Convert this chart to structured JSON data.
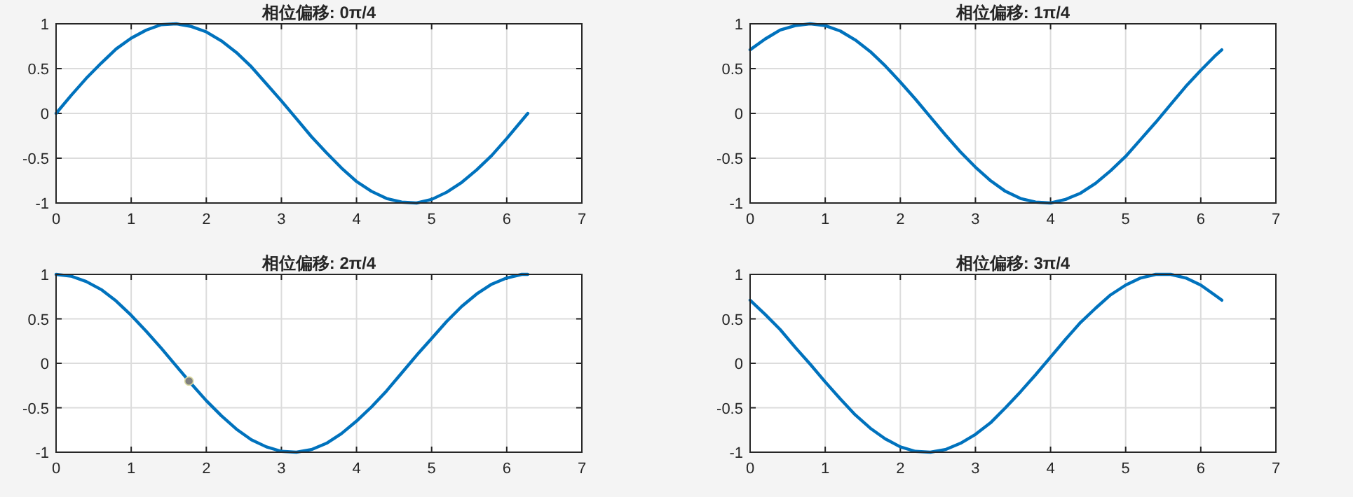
{
  "chart_data": [
    {
      "type": "line",
      "title": "相位偏移: 0π/4",
      "x": [
        0,
        0.2,
        0.4,
        0.6,
        0.8,
        1.0,
        1.2,
        1.4,
        1.6,
        1.8,
        2.0,
        2.2,
        2.4,
        2.6,
        2.8,
        3.0,
        3.2,
        3.4,
        3.6,
        3.8,
        4.0,
        4.2,
        4.4,
        4.6,
        4.8,
        5.0,
        5.2,
        5.4,
        5.6,
        5.8,
        6.0,
        6.2,
        6.28
      ],
      "series": [
        {
          "color": "#0072bd",
          "values": [
            0,
            0.2,
            0.39,
            0.56,
            0.72,
            0.84,
            0.93,
            0.99,
            1.0,
            0.97,
            0.91,
            0.81,
            0.68,
            0.52,
            0.33,
            0.14,
            -0.06,
            -0.26,
            -0.44,
            -0.61,
            -0.76,
            -0.87,
            -0.95,
            -0.99,
            -1.0,
            -0.96,
            -0.88,
            -0.77,
            -0.63,
            -0.47,
            -0.28,
            -0.08,
            0
          ]
        }
      ],
      "xlim": [
        0,
        7
      ],
      "ylim": [
        -1,
        1
      ],
      "xticks": [
        0,
        1,
        2,
        3,
        4,
        5,
        6,
        7
      ],
      "yticks": [
        -1,
        -0.5,
        0,
        0.5,
        1
      ],
      "grid": true
    },
    {
      "type": "line",
      "title": "相位偏移: 1π/4",
      "x": [
        0,
        0.2,
        0.4,
        0.6,
        0.8,
        1.0,
        1.2,
        1.4,
        1.6,
        1.8,
        2.0,
        2.2,
        2.4,
        2.6,
        2.8,
        3.0,
        3.2,
        3.4,
        3.6,
        3.8,
        4.0,
        4.2,
        4.4,
        4.6,
        4.8,
        5.0,
        5.2,
        5.4,
        5.6,
        5.8,
        6.0,
        6.2,
        6.28
      ],
      "series": [
        {
          "color": "#0072bd",
          "values": [
            0.71,
            0.83,
            0.93,
            0.98,
            1.0,
            0.98,
            0.92,
            0.82,
            0.69,
            0.53,
            0.35,
            0.16,
            -0.04,
            -0.24,
            -0.43,
            -0.6,
            -0.75,
            -0.87,
            -0.95,
            -0.99,
            -1.0,
            -0.96,
            -0.89,
            -0.78,
            -0.64,
            -0.48,
            -0.29,
            -0.1,
            0.1,
            0.3,
            0.48,
            0.65,
            0.71
          ]
        }
      ],
      "xlim": [
        0,
        7
      ],
      "ylim": [
        -1,
        1
      ],
      "xticks": [
        0,
        1,
        2,
        3,
        4,
        5,
        6,
        7
      ],
      "yticks": [
        -1,
        -0.5,
        0,
        0.5,
        1
      ],
      "grid": true
    },
    {
      "type": "line",
      "title": "相位偏移: 2π/4",
      "x": [
        0,
        0.2,
        0.4,
        0.6,
        0.8,
        1.0,
        1.2,
        1.4,
        1.6,
        1.8,
        2.0,
        2.2,
        2.4,
        2.6,
        2.8,
        3.0,
        3.2,
        3.4,
        3.6,
        3.8,
        4.0,
        4.2,
        4.4,
        4.6,
        4.8,
        5.0,
        5.2,
        5.4,
        5.6,
        5.8,
        6.0,
        6.2,
        6.28
      ],
      "series": [
        {
          "color": "#0072bd",
          "values": [
            1.0,
            0.98,
            0.92,
            0.83,
            0.7,
            0.54,
            0.36,
            0.17,
            -0.03,
            -0.23,
            -0.42,
            -0.59,
            -0.74,
            -0.86,
            -0.94,
            -0.99,
            -1.0,
            -0.97,
            -0.9,
            -0.79,
            -0.65,
            -0.49,
            -0.31,
            -0.11,
            0.09,
            0.28,
            0.47,
            0.64,
            0.78,
            0.89,
            0.96,
            1.0,
            1.0
          ]
        },
        {
          "type": "scatter",
          "color": "#808080",
          "marker": "circle",
          "x": [
            1.77
          ],
          "values": [
            -0.2
          ]
        }
      ],
      "xlim": [
        0,
        7
      ],
      "ylim": [
        -1,
        1
      ],
      "xticks": [
        0,
        1,
        2,
        3,
        4,
        5,
        6,
        7
      ],
      "yticks": [
        -1,
        -0.5,
        0,
        0.5,
        1
      ],
      "grid": true
    },
    {
      "type": "line",
      "title": "相位偏移: 3π/4",
      "x": [
        0,
        0.2,
        0.4,
        0.6,
        0.8,
        1.0,
        1.2,
        1.4,
        1.6,
        1.8,
        2.0,
        2.2,
        2.4,
        2.6,
        2.8,
        3.0,
        3.2,
        3.4,
        3.6,
        3.8,
        4.0,
        4.2,
        4.4,
        4.6,
        4.8,
        5.0,
        5.2,
        5.4,
        5.6,
        5.8,
        6.0,
        6.2,
        6.28
      ],
      "series": [
        {
          "color": "#0072bd",
          "values": [
            0.71,
            0.55,
            0.38,
            0.18,
            -0.01,
            -0.21,
            -0.4,
            -0.58,
            -0.73,
            -0.85,
            -0.94,
            -0.99,
            -1.0,
            -0.97,
            -0.9,
            -0.8,
            -0.67,
            -0.5,
            -0.32,
            -0.13,
            0.07,
            0.27,
            0.46,
            0.62,
            0.77,
            0.88,
            0.96,
            1.0,
            1.0,
            0.96,
            0.88,
            0.76,
            0.71
          ]
        }
      ],
      "xlim": [
        0,
        7
      ],
      "ylim": [
        -1,
        1
      ],
      "xticks": [
        0,
        1,
        2,
        3,
        4,
        5,
        6,
        7
      ],
      "yticks": [
        -1,
        -0.5,
        0,
        0.5,
        1
      ],
      "grid": true
    }
  ]
}
